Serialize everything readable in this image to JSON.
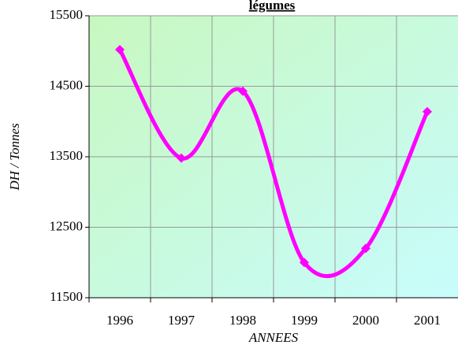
{
  "chart_data": {
    "type": "line",
    "title": "légumes",
    "x_label": "ANNEES",
    "y_label": "DH / Tonnes",
    "categories": [
      "1996",
      "1997",
      "1998",
      "1999",
      "2000",
      "2001"
    ],
    "series": [
      {
        "color": "#ff00ff",
        "values": [
          15020,
          13480,
          14430,
          12000,
          12200,
          14140
        ]
      }
    ],
    "ylim": [
      11500,
      15500
    ],
    "yticks": [
      11500,
      12500,
      13500,
      14500,
      15500
    ],
    "grid": true,
    "smooth": true
  }
}
